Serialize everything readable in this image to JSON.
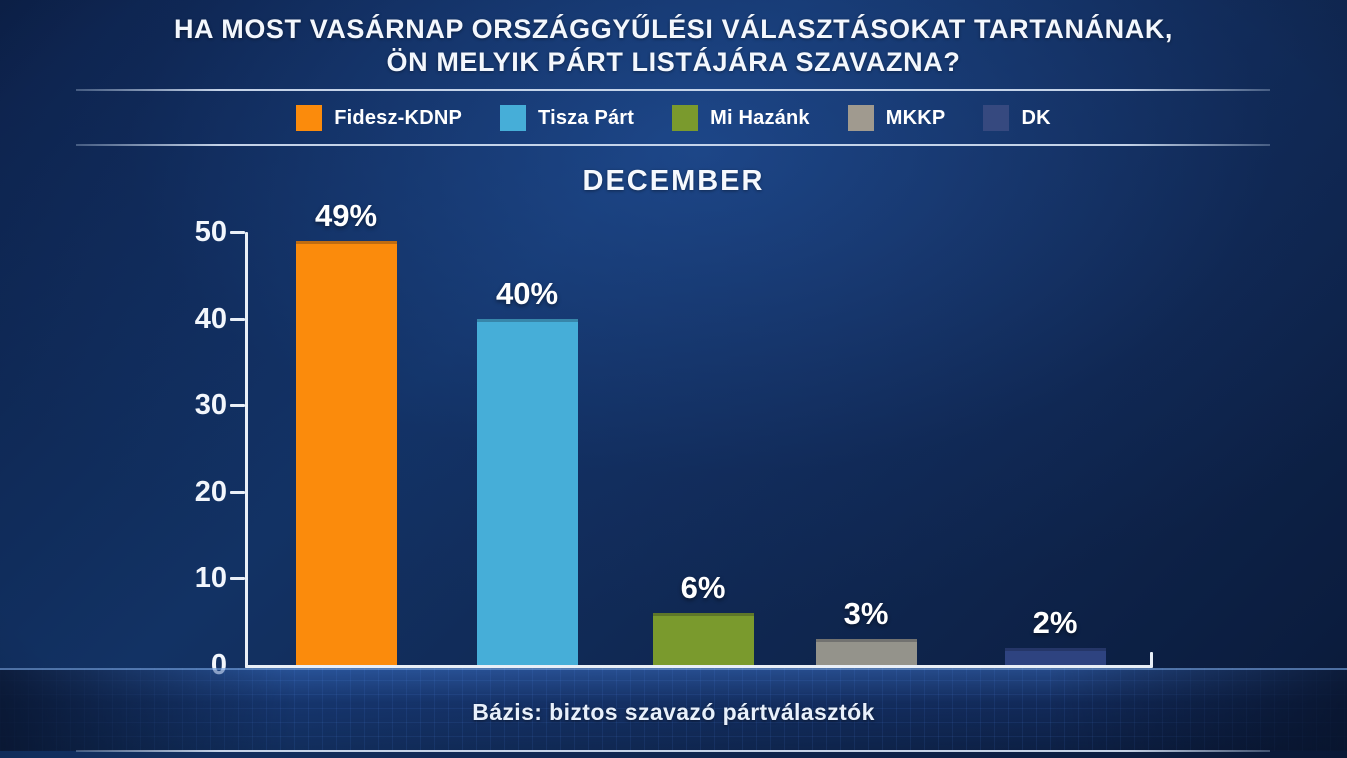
{
  "title": {
    "line1": "HA MOST VASÁRNAP ORSZÁGGYŰLÉSI VÁLASZTÁSOKAT TARTANÁNAK,",
    "line2": "ÖN MELYIK PÁRT LISTÁJÁRA SZAVAZNA?"
  },
  "legend": {
    "items": [
      {
        "label": "Fidesz-KDNP",
        "color": "#fb8b0c"
      },
      {
        "label": "Tisza Párt",
        "color": "#46aed8"
      },
      {
        "label": "Mi Hazánk",
        "color": "#7a9a2d"
      },
      {
        "label": "MKKP",
        "color": "#a09a8f"
      },
      {
        "label": "DK",
        "color": "#36497f"
      }
    ]
  },
  "chart_data": {
    "type": "bar",
    "title": "DECEMBER",
    "categories": [
      "Fidesz-KDNP",
      "Tisza Párt",
      "Mi Hazánk",
      "MKKP",
      "DK"
    ],
    "values": [
      49,
      40,
      6,
      3,
      2
    ],
    "value_labels": [
      "49%",
      "40%",
      "6%",
      "3%",
      "2%"
    ],
    "bar_colors": [
      "#fb8b0c",
      "#46aed8",
      "#7a9a2d",
      "#94938b",
      "#2e4380"
    ],
    "xlabel": "",
    "ylabel": "",
    "ylim": [
      0,
      50
    ],
    "yticks": [
      0,
      10,
      20,
      30,
      40,
      50
    ],
    "grid": false,
    "legend_position": "top",
    "caption": "Bázis: biztos szavazó pártválasztók"
  }
}
